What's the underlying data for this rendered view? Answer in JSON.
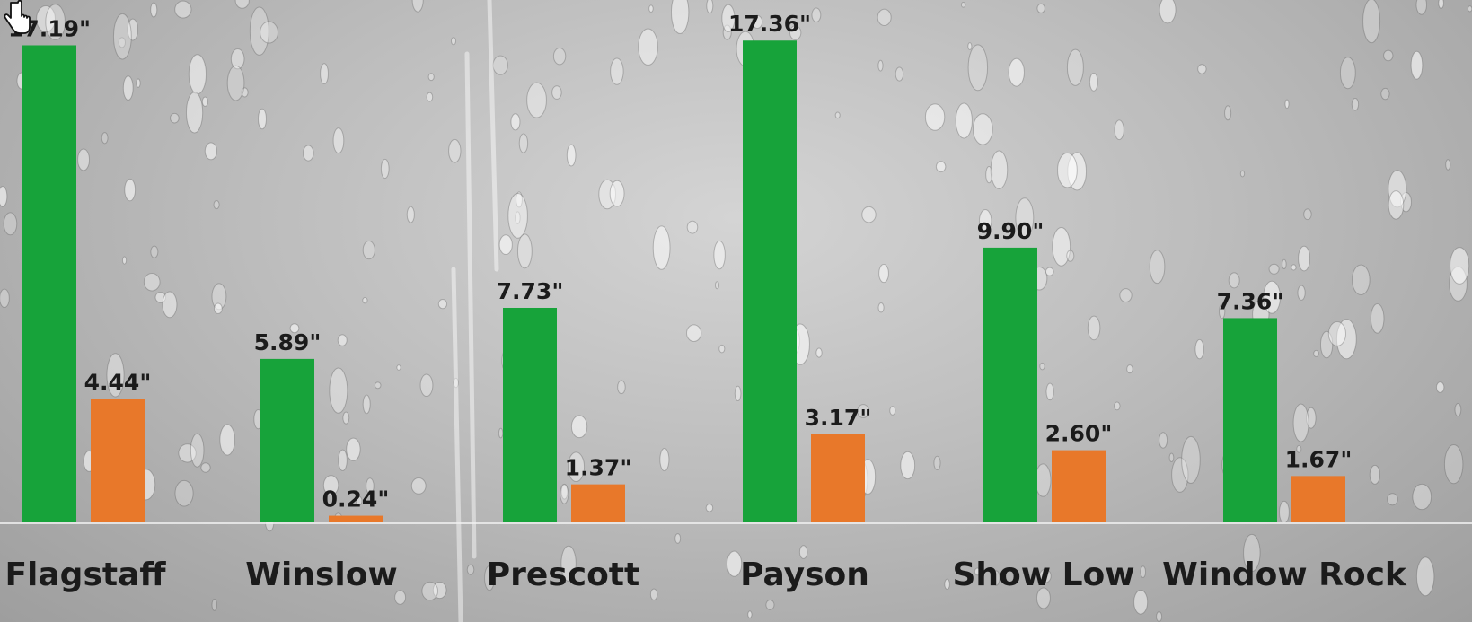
{
  "chart_data": {
    "type": "bar",
    "categories": [
      "Flagstaff",
      "Winslow",
      "Prescott",
      "Payson",
      "Show Low",
      "Window Rock"
    ],
    "series": [
      {
        "color": "#17a33a",
        "values": [
          17.19,
          5.89,
          7.73,
          17.36,
          9.9,
          7.36
        ],
        "labels": [
          "17.19\"",
          "5.89\"",
          "7.73\"",
          "17.36\"",
          "9.90\"",
          "7.36\""
        ]
      },
      {
        "color": "#e8782a",
        "values": [
          4.44,
          0.24,
          1.37,
          3.17,
          2.6,
          1.67
        ],
        "labels": [
          "4.44\"",
          "0.24\"",
          "1.37\"",
          "3.17\"",
          "2.60\"",
          "1.67\""
        ]
      }
    ],
    "title": "",
    "xlabel": "",
    "ylabel": "",
    "ylim": [
      0,
      17.4
    ],
    "grid": false,
    "legend": "none"
  },
  "background": {
    "style": "rain drops on glass",
    "base_color": "#bdbdbd"
  },
  "cursor": {
    "icon": "hand-pointer-icon"
  }
}
